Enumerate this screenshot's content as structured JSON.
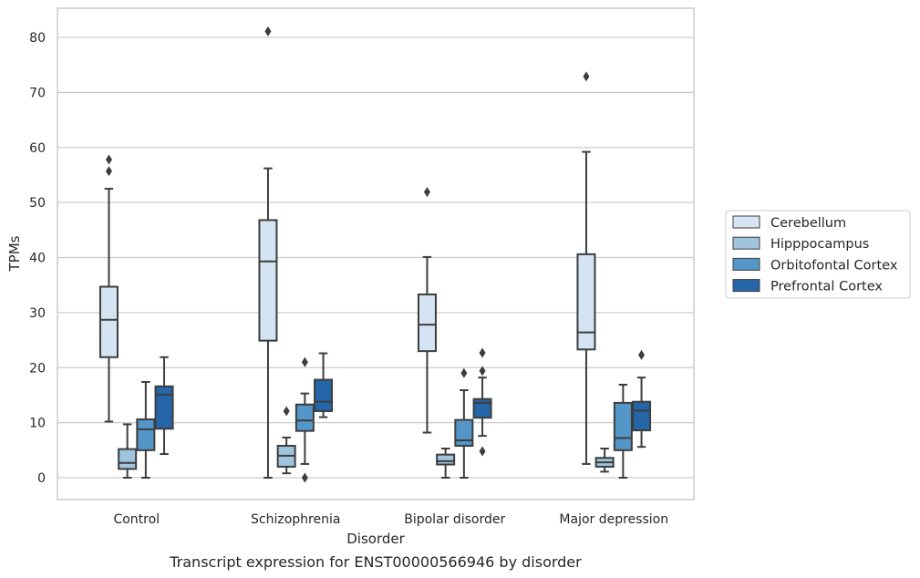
{
  "chart_data": {
    "type": "box",
    "caption": "Transcript expression for ENST00000566946 by disorder",
    "xlabel": "Disorder",
    "ylabel": "TPMs",
    "ylim": [
      -4,
      85
    ],
    "yticks": [
      0,
      10,
      20,
      30,
      40,
      50,
      60,
      70,
      80
    ],
    "grid": true,
    "legend_position": "right",
    "categories": [
      "Control",
      "Schizophrenia",
      "Bipolar disorder",
      "Major depression"
    ],
    "colors": {
      "Cerebellum": "#d5e4f2",
      "Hipppocampus": "#9ec4de",
      "Orbitofontal Cortex": "#5596c8",
      "Prefrontal Cortex": "#2466a8"
    },
    "series": [
      {
        "name": "Cerebellum",
        "boxes": [
          {
            "whisker_low": 10.2,
            "q1": 21.9,
            "median": 28.7,
            "q3": 34.7,
            "whisker_high": 52.5,
            "outliers": [
              55.7,
              57.8
            ]
          },
          {
            "whisker_low": 0,
            "q1": 24.9,
            "median": 39.3,
            "q3": 46.8,
            "whisker_high": 56.2,
            "outliers": [
              81.1
            ]
          },
          {
            "whisker_low": 8.2,
            "q1": 23.0,
            "median": 27.8,
            "q3": 33.3,
            "whisker_high": 40.1,
            "outliers": [
              51.9
            ]
          },
          {
            "whisker_low": 2.5,
            "q1": 23.3,
            "median": 26.4,
            "q3": 40.6,
            "whisker_high": 59.2,
            "outliers": [
              72.9
            ]
          }
        ]
      },
      {
        "name": "Hipppocampus",
        "boxes": [
          {
            "whisker_low": 0,
            "q1": 1.6,
            "median": 2.7,
            "q3": 5.2,
            "whisker_high": 9.7,
            "outliers": []
          },
          {
            "whisker_low": 0.8,
            "q1": 2.0,
            "median": 4.0,
            "q3": 5.8,
            "whisker_high": 7.3,
            "outliers": [
              12.1
            ]
          },
          {
            "whisker_low": 0,
            "q1": 2.4,
            "median": 3.0,
            "q3": 4.2,
            "whisker_high": 5.3,
            "outliers": []
          },
          {
            "whisker_low": 1.1,
            "q1": 2.0,
            "median": 2.8,
            "q3": 3.6,
            "whisker_high": 5.3,
            "outliers": []
          }
        ]
      },
      {
        "name": "Orbitofontal Cortex",
        "boxes": [
          {
            "whisker_low": 0,
            "q1": 5.0,
            "median": 8.8,
            "q3": 10.6,
            "whisker_high": 17.4,
            "outliers": []
          },
          {
            "whisker_low": 2.5,
            "q1": 8.5,
            "median": 10.4,
            "q3": 13.3,
            "whisker_high": 15.3,
            "outliers": [
              0,
              21.0
            ]
          },
          {
            "whisker_low": 0,
            "q1": 5.8,
            "median": 6.8,
            "q3": 10.5,
            "whisker_high": 15.9,
            "outliers": [
              19.0
            ]
          },
          {
            "whisker_low": 0,
            "q1": 5.0,
            "median": 7.2,
            "q3": 13.6,
            "whisker_high": 16.9,
            "outliers": []
          }
        ]
      },
      {
        "name": "Prefrontal Cortex",
        "boxes": [
          {
            "whisker_low": 4.3,
            "q1": 8.9,
            "median": 15.1,
            "q3": 16.6,
            "whisker_high": 21.9,
            "outliers": []
          },
          {
            "whisker_low": 11.0,
            "q1": 12.1,
            "median": 13.8,
            "q3": 17.8,
            "whisker_high": 22.6,
            "outliers": []
          },
          {
            "whisker_low": 7.6,
            "q1": 10.9,
            "median": 13.6,
            "q3": 14.3,
            "whisker_high": 18.2,
            "outliers": [
              4.8,
              19.4,
              22.7
            ]
          },
          {
            "whisker_low": 5.6,
            "q1": 8.6,
            "median": 12.2,
            "q3": 13.8,
            "whisker_high": 18.2,
            "outliers": [
              22.3
            ]
          }
        ]
      }
    ]
  }
}
